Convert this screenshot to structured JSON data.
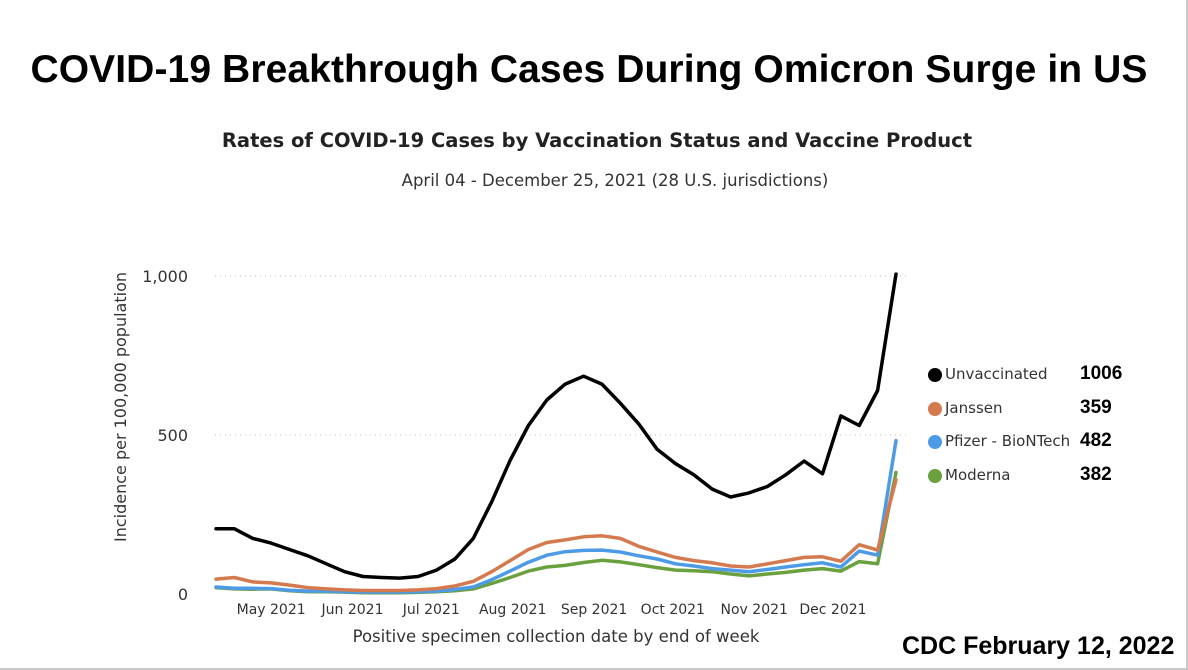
{
  "page": {
    "title": "COVID-19 Breakthrough Cases During Omicron Surge in US",
    "credit": "CDC February 12, 2022"
  },
  "chart_data": {
    "type": "line",
    "title": "Rates of COVID-19 Cases by Vaccination Status and Vaccine Product",
    "subtitle": "April 04 - December 25, 2021 (28 U.S. jurisdictions)",
    "xlabel": "Positive specimen collection date by end of week",
    "ylabel": "Incidence per 100,000 population",
    "ylim": [
      0,
      1000
    ],
    "yticks": [
      0,
      500,
      1000
    ],
    "ytick_labels": [
      "0",
      "500",
      "1,000"
    ],
    "grid": "horizontal dotted",
    "legend_position": "right",
    "x_range": [
      "2021-04-10",
      "2021-12-25"
    ],
    "xticks": [
      {
        "label": "May 2021",
        "date": "2021-05-01"
      },
      {
        "label": "Jun 2021",
        "date": "2021-06-01"
      },
      {
        "label": "Jul 2021",
        "date": "2021-07-01"
      },
      {
        "label": "Aug 2021",
        "date": "2021-08-01"
      },
      {
        "label": "Sep 2021",
        "date": "2021-09-01"
      },
      {
        "label": "Oct 2021",
        "date": "2021-10-01"
      },
      {
        "label": "Nov 2021",
        "date": "2021-11-01"
      },
      {
        "label": "Dec 2021",
        "date": "2021-12-01"
      }
    ],
    "x": [
      "2021-04-10",
      "2021-04-17",
      "2021-04-24",
      "2021-05-01",
      "2021-05-08",
      "2021-05-15",
      "2021-05-22",
      "2021-05-29",
      "2021-06-05",
      "2021-06-12",
      "2021-06-19",
      "2021-06-26",
      "2021-07-03",
      "2021-07-10",
      "2021-07-17",
      "2021-07-24",
      "2021-07-31",
      "2021-08-07",
      "2021-08-14",
      "2021-08-21",
      "2021-08-28",
      "2021-09-04",
      "2021-09-11",
      "2021-09-18",
      "2021-09-25",
      "2021-10-02",
      "2021-10-09",
      "2021-10-16",
      "2021-10-23",
      "2021-10-30",
      "2021-11-06",
      "2021-11-13",
      "2021-11-20",
      "2021-11-27",
      "2021-12-04",
      "2021-12-11",
      "2021-12-18",
      "2021-12-25"
    ],
    "series": [
      {
        "name": "Unvaccinated",
        "color": "#000000",
        "latest": "1006",
        "values": [
          205,
          205,
          175,
          160,
          140,
          120,
          95,
          70,
          55,
          52,
          50,
          55,
          75,
          110,
          175,
          290,
          420,
          530,
          610,
          660,
          685,
          660,
          600,
          535,
          455,
          410,
          375,
          330,
          305,
          318,
          338,
          375,
          418,
          378,
          560,
          530,
          640,
          1006
        ]
      },
      {
        "name": "Janssen",
        "color": "#d47a4e",
        "latest": "359",
        "values": [
          47,
          52,
          38,
          35,
          28,
          20,
          16,
          13,
          11,
          11,
          11,
          13,
          17,
          25,
          40,
          70,
          105,
          140,
          162,
          170,
          180,
          183,
          175,
          150,
          132,
          115,
          105,
          98,
          88,
          85,
          95,
          105,
          115,
          117,
          103,
          155,
          138,
          359
        ]
      },
      {
        "name": "Pfizer - BioNTech",
        "color": "#4d9be6",
        "latest": "482",
        "values": [
          22,
          18,
          18,
          17,
          12,
          9,
          9,
          7,
          6,
          6,
          6,
          7,
          9,
          14,
          22,
          45,
          72,
          100,
          122,
          133,
          137,
          138,
          132,
          120,
          110,
          95,
          88,
          80,
          75,
          70,
          77,
          85,
          92,
          98,
          85,
          135,
          122,
          482
        ]
      },
      {
        "name": "Moderna",
        "color": "#6aa03e",
        "latest": "382",
        "values": [
          20,
          16,
          15,
          16,
          10,
          7,
          7,
          6,
          4,
          4,
          4,
          5,
          7,
          10,
          16,
          33,
          52,
          72,
          85,
          90,
          99,
          106,
          101,
          92,
          83,
          75,
          73,
          70,
          63,
          57,
          63,
          68,
          75,
          80,
          72,
          102,
          95,
          382
        ]
      }
    ]
  }
}
